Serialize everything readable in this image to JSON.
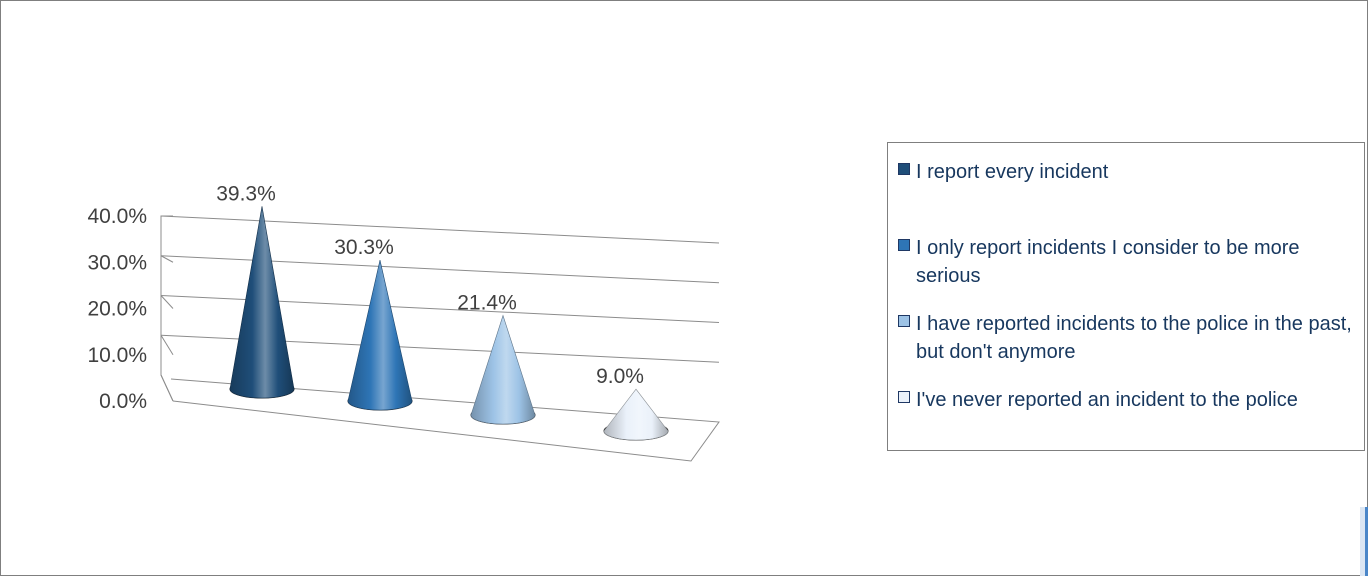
{
  "chart_data": {
    "type": "bar",
    "bar_shape": "cone-3d",
    "title": "",
    "xlabel": "",
    "ylabel": "",
    "ylim": [
      0,
      40
    ],
    "y_ticks": [
      "0.0%",
      "10.0%",
      "20.0%",
      "30.0%",
      "40.0%"
    ],
    "y_tick_values": [
      0,
      10,
      20,
      30,
      40
    ],
    "gridlines": true,
    "legend_position": "right",
    "categories": [
      "I report every incident",
      "I only report incidents I consider to be more serious",
      "I have reported incidents to the police in the past, but don't anymore",
      "I've never reported an incident to the police"
    ],
    "values": [
      39.3,
      30.3,
      21.4,
      9.0
    ],
    "data_labels": [
      "39.3%",
      "30.3%",
      "21.4%",
      "9.0%"
    ],
    "colors": [
      "#1f4e79",
      "#2e75b6",
      "#9dc3e6",
      "#eaf1fa"
    ]
  }
}
